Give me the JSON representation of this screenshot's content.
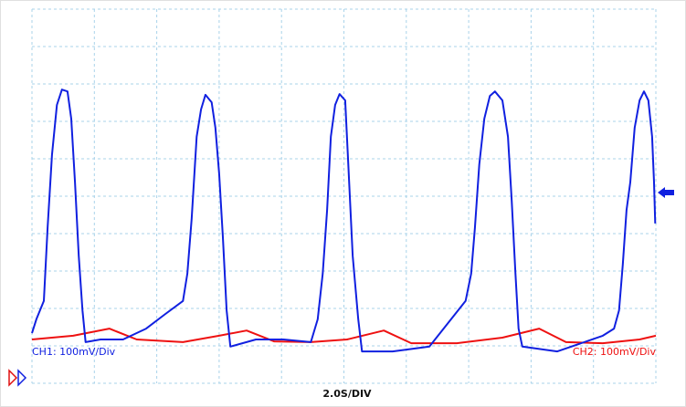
{
  "chart_data": {
    "type": "line",
    "x_label": "2.0S/DIV",
    "xlim": [
      0,
      10
    ],
    "ylim": [
      0,
      10
    ],
    "xticks": [
      0,
      1,
      2,
      3,
      4,
      5,
      6,
      7,
      8,
      9,
      10
    ],
    "yticks": [
      0,
      1,
      2,
      3,
      4,
      5,
      6,
      7,
      8,
      9,
      10
    ],
    "grid": true,
    "series": [
      {
        "name": "CH1: 100mV/Div",
        "color": "#1020e0",
        "x": [
          0,
          0.07,
          0.19,
          0.25,
          0.32,
          0.4,
          0.48,
          0.57,
          0.63,
          0.69,
          0.75,
          0.81,
          0.86,
          1.1,
          1.46,
          1.83,
          2.12,
          2.42,
          2.49,
          2.56,
          2.64,
          2.71,
          2.78,
          2.88,
          2.94,
          3.0,
          3.06,
          3.12,
          3.18,
          3.59,
          4.03,
          4.47,
          4.58,
          4.66,
          4.73,
          4.79,
          4.86,
          4.93,
          5.02,
          5.07,
          5.14,
          5.23,
          5.29,
          5.78,
          6.37,
          6.66,
          6.95,
          7.04,
          7.1,
          7.17,
          7.25,
          7.34,
          7.42,
          7.54,
          7.63,
          7.69,
          7.75,
          7.8,
          7.86,
          8.42,
          9.15,
          9.33,
          9.41,
          9.47,
          9.53,
          9.59,
          9.66,
          9.74,
          9.81,
          9.88,
          9.94,
          9.97,
          9.99
        ],
        "values": [
          1.34,
          1.71,
          2.2,
          4.15,
          6.1,
          7.44,
          7.85,
          7.8,
          7.07,
          5.37,
          3.41,
          1.95,
          1.1,
          1.17,
          1.17,
          1.46,
          1.83,
          2.2,
          2.93,
          4.39,
          6.59,
          7.32,
          7.71,
          7.51,
          6.83,
          5.61,
          3.9,
          1.95,
          0.98,
          1.17,
          1.17,
          1.1,
          1.71,
          2.93,
          4.63,
          6.59,
          7.44,
          7.73,
          7.56,
          5.85,
          3.41,
          1.71,
          0.85,
          0.85,
          0.98,
          1.59,
          2.2,
          2.93,
          4.15,
          5.85,
          7.07,
          7.68,
          7.8,
          7.56,
          6.59,
          4.88,
          2.93,
          1.46,
          0.98,
          0.85,
          1.27,
          1.46,
          1.95,
          3.17,
          4.63,
          5.37,
          6.83,
          7.56,
          7.8,
          7.56,
          6.59,
          5.37,
          4.27
        ]
      },
      {
        "name": "CH2: 100mV/Div",
        "color": "#ee1111",
        "x": [
          0,
          0.66,
          1.24,
          1.68,
          2.42,
          3.0,
          3.44,
          3.88,
          4.47,
          5.05,
          5.64,
          6.08,
          6.81,
          7.54,
          8.13,
          8.56,
          9.15,
          9.74,
          10
        ],
        "values": [
          1.17,
          1.27,
          1.46,
          1.17,
          1.1,
          1.27,
          1.41,
          1.12,
          1.1,
          1.17,
          1.41,
          1.07,
          1.07,
          1.22,
          1.46,
          1.1,
          1.07,
          1.17,
          1.27
        ]
      }
    ]
  }
}
